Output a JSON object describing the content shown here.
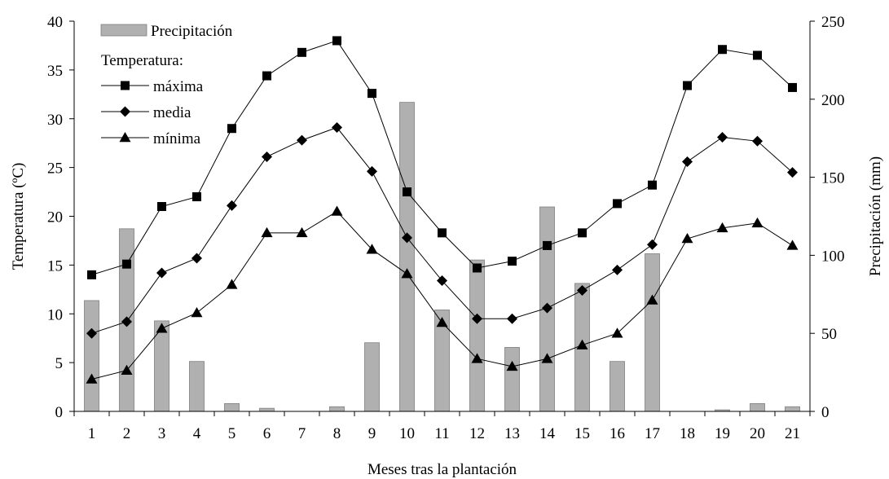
{
  "chart_data": {
    "type": "bar+line",
    "xlabel": "Meses tras la plantación",
    "ylabel_left": "Temperatura (ºC)",
    "ylabel_right": "Precipitación (mm)",
    "categories": [
      "1",
      "2",
      "3",
      "4",
      "5",
      "6",
      "7",
      "8",
      "9",
      "10",
      "11",
      "12",
      "13",
      "14",
      "15",
      "16",
      "17",
      "18",
      "19",
      "20",
      "21"
    ],
    "ylim_left": [
      0,
      40
    ],
    "yticks_left": [
      "0",
      "5",
      "10",
      "15",
      "20",
      "25",
      "30",
      "35",
      "40"
    ],
    "ylim_right": [
      0,
      250
    ],
    "yticks_right": [
      "0",
      "50",
      "100",
      "150",
      "200",
      "250"
    ],
    "grid": false,
    "legend_position": "top-left",
    "legend_heading": "Temperatura:",
    "bar_series": {
      "name": "Precipitación",
      "color": "#b0b0b0",
      "values": [
        71,
        117,
        58,
        32,
        5,
        2,
        0,
        3,
        44,
        198,
        65,
        97,
        41,
        131,
        82,
        32,
        101,
        0,
        1,
        5,
        3
      ]
    },
    "series": [
      {
        "name": "máxima",
        "marker": "square",
        "values": [
          14.0,
          15.1,
          21.0,
          22.0,
          29.0,
          34.4,
          36.8,
          38.0,
          32.6,
          22.5,
          18.3,
          14.7,
          15.4,
          17.0,
          18.3,
          21.3,
          23.2,
          33.4,
          37.1,
          36.5,
          33.2
        ]
      },
      {
        "name": "media",
        "marker": "diamond",
        "values": [
          8.0,
          9.2,
          14.2,
          15.7,
          21.1,
          26.1,
          27.8,
          29.1,
          24.6,
          17.8,
          13.4,
          9.5,
          9.5,
          10.6,
          12.4,
          14.5,
          17.1,
          25.6,
          28.1,
          27.7,
          24.5
        ]
      },
      {
        "name": "mínima",
        "marker": "triangle",
        "values": [
          3.3,
          4.2,
          8.5,
          10.1,
          13.0,
          18.3,
          18.3,
          20.5,
          16.6,
          14.1,
          9.1,
          5.4,
          4.6,
          5.4,
          6.8,
          8.0,
          11.4,
          17.7,
          18.8,
          19.3,
          17.0
        ]
      }
    ]
  }
}
